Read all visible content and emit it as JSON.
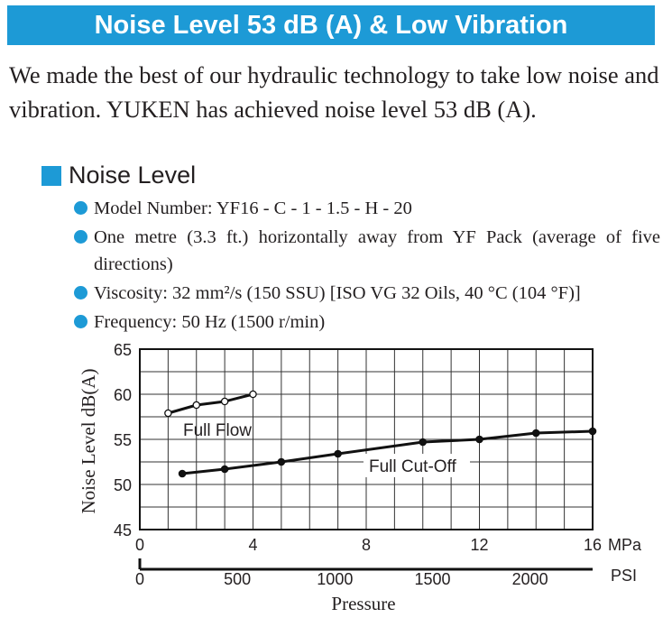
{
  "banner": {
    "title": "Noise Level 53 dB (A) & Low Vibration"
  },
  "intro": {
    "text": "We made the best of our hydraulic technology to take low noise and vibration.  YUKEN has achieved noise level 53 dB (A)."
  },
  "section": {
    "title": "Noise Level"
  },
  "conditions": [
    {
      "text": "Model Number: YF16 - C - 1 - 1.5 - H - 20"
    },
    {
      "text": "One metre (3.3 ft.) horizontally away from YF Pack (average of five directions)"
    },
    {
      "text": "Viscosity: 32 mm²/s (150 SSU) [ISO VG 32 Oils, 40 °C (104 °F)]"
    },
    {
      "text": "Frequency: 50 Hz (1500 r/min)"
    }
  ],
  "colors": {
    "accent": "#1d9ad6",
    "text": "#231f20",
    "line": "#111111"
  },
  "chart_data": {
    "type": "line",
    "ylabel": "Noise Level dB(A)",
    "xlabel": "Pressure",
    "ylim": [
      45,
      65
    ],
    "yticks": [
      45,
      50,
      55,
      60,
      65
    ],
    "x_primary": {
      "unit": "MPa",
      "range": [
        0,
        16
      ],
      "ticks": [
        0,
        4,
        8,
        12,
        16
      ]
    },
    "x_secondary": {
      "unit": "PSI",
      "ticks": [
        0,
        500,
        1000,
        1500,
        2000
      ]
    },
    "grid": true,
    "series": [
      {
        "name": "Full Flow",
        "marker": "open-circle",
        "x": [
          1.0,
          2.0,
          3.0,
          4.0
        ],
        "y": [
          57.9,
          58.8,
          59.2,
          60.0
        ]
      },
      {
        "name": "Full Cut-Off",
        "marker": "filled-circle",
        "x": [
          1.5,
          3.0,
          5.0,
          7.0,
          10.0,
          12.0,
          14.0,
          16.0
        ],
        "y": [
          51.2,
          51.7,
          52.5,
          53.4,
          54.7,
          55.0,
          55.7,
          55.9
        ]
      }
    ]
  }
}
